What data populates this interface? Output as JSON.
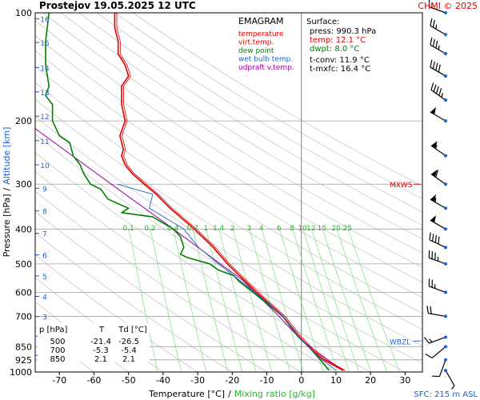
{
  "header": {
    "station": "Prostejov",
    "datetime": "19.05.2025 12 UTC",
    "credit": "CHMI © 2025"
  },
  "legend": {
    "title": "EMAGRAM",
    "entries": [
      {
        "label": "temperature",
        "color": "#e00000"
      },
      {
        "label": "virt.temp.",
        "color": "#e00000"
      },
      {
        "label": "dew point",
        "color": "#008000"
      },
      {
        "label": "wet bulb temp.",
        "color": "#1f5fd0"
      },
      {
        "label": "udpraft v.temp.",
        "color": "#a000a0"
      }
    ]
  },
  "surface": {
    "heading": "Surface:",
    "lines": [
      {
        "text": "press: 990.3 hPa",
        "color": "#000000"
      },
      {
        "text": "temp: 12.1 °C",
        "color": "#e00000"
      },
      {
        "text": "dwpt: 8.0 °C",
        "color": "#008000"
      },
      {
        "text": "t-conv: 11.9 °C",
        "color": "#000000"
      },
      {
        "text": "t-mxfc: 16.4 °C",
        "color": "#000000"
      }
    ]
  },
  "table": {
    "headers": [
      "p [hPa]",
      "T",
      "Td [°C]"
    ],
    "rows": [
      [
        "500",
        "-21.4",
        "-26.5"
      ],
      [
        "700",
        "-5.3",
        "-5.4"
      ],
      [
        "850",
        "2.1",
        "2.1"
      ]
    ]
  },
  "markers": [
    {
      "label": "MXWS",
      "p": 300,
      "color": "#e00000"
    },
    {
      "label": "WBZL",
      "p": 820,
      "color": "#1f5fd0"
    }
  ],
  "footer": {
    "sfc": "SFC: 215 m ASL"
  },
  "chart_data": {
    "type": "line",
    "title": "EMAGRAM",
    "xlabel": "Temperature [°C]",
    "xlabel2": "Mixing ratio [g/kg]",
    "ylabel": "Pressure [hPa]",
    "ylabel2": "Altitude [km]",
    "xlim": [
      -77,
      35
    ],
    "ylim": [
      1000,
      100
    ],
    "y_scale": "log",
    "xticks": [
      -70,
      -60,
      -50,
      -40,
      -30,
      -20,
      -10,
      0,
      10,
      20,
      30
    ],
    "yticks": [
      100,
      200,
      300,
      400,
      500,
      600,
      700,
      850,
      925,
      1000
    ],
    "altitude_ticks": [
      {
        "km": 1,
        "p": 899
      },
      {
        "km": 2,
        "p": 795
      },
      {
        "km": 3,
        "p": 701
      },
      {
        "km": 4,
        "p": 616
      },
      {
        "km": 5,
        "p": 540
      },
      {
        "km": 6,
        "p": 472
      },
      {
        "km": 7,
        "p": 411
      },
      {
        "km": 8,
        "p": 356
      },
      {
        "km": 9,
        "p": 308
      },
      {
        "km": 10,
        "p": 265
      },
      {
        "km": 11,
        "p": 227
      },
      {
        "km": 12,
        "p": 194
      },
      {
        "km": 13,
        "p": 166
      },
      {
        "km": 14,
        "p": 142
      },
      {
        "km": 15,
        "p": 121
      },
      {
        "km": 16,
        "p": 104
      }
    ],
    "mixing_ratio_labels": [
      "0.1",
      "0.2",
      "0.4",
      "0.7",
      "1",
      "1.4",
      "2",
      "3",
      "4",
      "6",
      "8",
      "10",
      "12",
      "15",
      "20",
      "25"
    ],
    "mixing_ratio_label_p": 395,
    "series": [
      {
        "name": "temperature",
        "color": "#e00000",
        "points": [
          [
            990,
            12.1
          ],
          [
            925,
            6.5
          ],
          [
            850,
            2.1
          ],
          [
            800,
            -0.5
          ],
          [
            700,
            -5.3
          ],
          [
            600,
            -13
          ],
          [
            500,
            -21.4
          ],
          [
            450,
            -25.5
          ],
          [
            400,
            -31
          ],
          [
            350,
            -38
          ],
          [
            320,
            -42
          ],
          [
            300,
            -45.5
          ],
          [
            280,
            -49
          ],
          [
            265,
            -51
          ],
          [
            250,
            -52
          ],
          [
            240,
            -51.5
          ],
          [
            220,
            -52.5
          ],
          [
            200,
            -51
          ],
          [
            180,
            -52
          ],
          [
            160,
            -52
          ],
          [
            150,
            -50
          ],
          [
            140,
            -51
          ],
          [
            130,
            -53
          ],
          [
            120,
            -53
          ],
          [
            110,
            -54
          ],
          [
            100,
            -54
          ]
        ]
      },
      {
        "name": "dew point",
        "color": "#008000",
        "points": [
          [
            990,
            8
          ],
          [
            925,
            5.5
          ],
          [
            850,
            2.1
          ],
          [
            800,
            -0.8
          ],
          [
            700,
            -5.4
          ],
          [
            600,
            -14
          ],
          [
            560,
            -18
          ],
          [
            540,
            -19.5
          ],
          [
            520,
            -24
          ],
          [
            500,
            -26.5
          ],
          [
            480,
            -33
          ],
          [
            470,
            -35
          ],
          [
            450,
            -34
          ],
          [
            420,
            -35
          ],
          [
            400,
            -37
          ],
          [
            380,
            -41
          ],
          [
            370,
            -43
          ],
          [
            360,
            -52
          ],
          [
            350,
            -50
          ],
          [
            340,
            -53
          ],
          [
            330,
            -56
          ],
          [
            310,
            -58
          ],
          [
            300,
            -61
          ],
          [
            280,
            -63
          ],
          [
            265,
            -64
          ],
          [
            250,
            -66
          ],
          [
            230,
            -67
          ],
          [
            220,
            -70
          ],
          [
            200,
            -72
          ],
          [
            180,
            -72
          ],
          [
            170,
            -74
          ],
          [
            160,
            -73
          ],
          [
            140,
            -74
          ],
          [
            120,
            -74
          ],
          [
            100,
            -73
          ]
        ]
      }
    ],
    "parcel": {
      "name": "udpraft v.temp.",
      "color": "#a000a0",
      "points": [
        [
          990,
          12.1
        ],
        [
          930,
          8
        ],
        [
          900,
          6
        ],
        [
          850,
          2.5
        ],
        [
          800,
          -0.8
        ],
        [
          700,
          -6.5
        ],
        [
          600,
          -13.5
        ],
        [
          550,
          -17.5
        ],
        [
          500,
          -23.5
        ],
        [
          400,
          -37
        ],
        [
          300,
          -55
        ],
        [
          200,
          -80
        ]
      ]
    },
    "wind": {
      "unit": "kt",
      "levels": [
        {
          "p": 990,
          "dir": 150,
          "spd": 5
        },
        {
          "p": 925,
          "dir": 200,
          "spd": 10
        },
        {
          "p": 850,
          "dir": 230,
          "spd": 10
        },
        {
          "p": 800,
          "dir": 250,
          "spd": 15
        },
        {
          "p": 700,
          "dir": 280,
          "spd": 20
        },
        {
          "p": 600,
          "dir": 290,
          "spd": 25
        },
        {
          "p": 500,
          "dir": 290,
          "spd": 35
        },
        {
          "p": 450,
          "dir": 295,
          "spd": 40
        },
        {
          "p": 400,
          "dir": 300,
          "spd": 50
        },
        {
          "p": 350,
          "dir": 300,
          "spd": 55
        },
        {
          "p": 300,
          "dir": 305,
          "spd": 60
        },
        {
          "p": 250,
          "dir": 305,
          "spd": 55
        },
        {
          "p": 200,
          "dir": 300,
          "spd": 50
        },
        {
          "p": 175,
          "dir": 305,
          "spd": 45
        },
        {
          "p": 150,
          "dir": 300,
          "spd": 40
        },
        {
          "p": 130,
          "dir": 300,
          "spd": 35
        },
        {
          "p": 115,
          "dir": 300,
          "spd": 25
        },
        {
          "p": 100,
          "dir": 290,
          "spd": 15
        }
      ]
    }
  }
}
